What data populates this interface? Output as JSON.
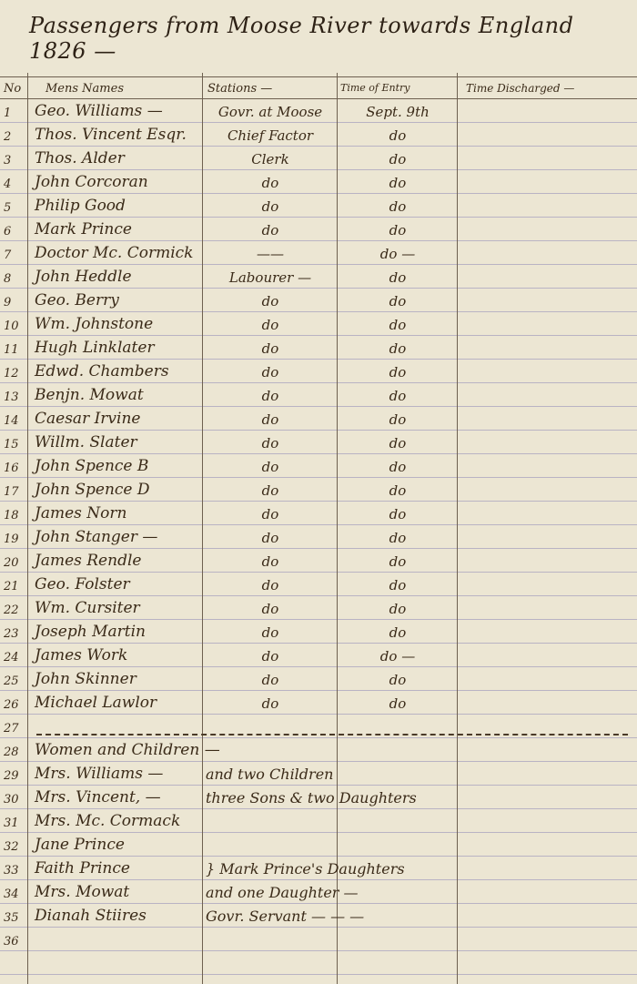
{
  "title": "Passengers from Moose River towards England 1826 —",
  "headers": {
    "no": "No",
    "names": "Mens Names",
    "stations": "Stations —",
    "time_entry": "Time of Entry",
    "time_discharged": "Time Discharged —"
  },
  "rows": [
    {
      "no": "1",
      "name": "Geo. Williams —",
      "station": "Govr. at Moose",
      "time": "Sept. 9th"
    },
    {
      "no": "2",
      "name": "Thos. Vincent Esqr.",
      "station": "Chief Factor",
      "time": "do"
    },
    {
      "no": "3",
      "name": "Thos. Alder",
      "station": "Clerk",
      "time": "do"
    },
    {
      "no": "4",
      "name": "John Corcoran",
      "station": "do",
      "time": "do"
    },
    {
      "no": "5",
      "name": "Philip Good",
      "station": "do",
      "time": "do"
    },
    {
      "no": "6",
      "name": "Mark Prince",
      "station": "do",
      "time": "do"
    },
    {
      "no": "7",
      "name": "Doctor Mc. Cormick",
      "station": "——",
      "time": "do —"
    },
    {
      "no": "8",
      "name": "John Heddle",
      "station": "Labourer —",
      "time": "do"
    },
    {
      "no": "9",
      "name": "Geo. Berry",
      "station": "do",
      "time": "do"
    },
    {
      "no": "10",
      "name": "Wm. Johnstone",
      "station": "do",
      "time": "do"
    },
    {
      "no": "11",
      "name": "Hugh Linklater",
      "station": "do",
      "time": "do"
    },
    {
      "no": "12",
      "name": "Edwd. Chambers",
      "station": "do",
      "time": "do"
    },
    {
      "no": "13",
      "name": "Benjn. Mowat",
      "station": "do",
      "time": "do"
    },
    {
      "no": "14",
      "name": "Caesar Irvine",
      "station": "do",
      "time": "do"
    },
    {
      "no": "15",
      "name": "Willm. Slater",
      "station": "do",
      "time": "do"
    },
    {
      "no": "16",
      "name": "John Spence B",
      "station": "do",
      "time": "do"
    },
    {
      "no": "17",
      "name": "John Spence D",
      "station": "do",
      "time": "do"
    },
    {
      "no": "18",
      "name": "James Norn",
      "station": "do",
      "time": "do"
    },
    {
      "no": "19",
      "name": "John Stanger —",
      "station": "do",
      "time": "do"
    },
    {
      "no": "20",
      "name": "James Rendle",
      "station": "do",
      "time": "do"
    },
    {
      "no": "21",
      "name": "Geo. Folster",
      "station": "do",
      "time": "do"
    },
    {
      "no": "22",
      "name": "Wm. Cursiter",
      "station": "do",
      "time": "do"
    },
    {
      "no": "23",
      "name": "Joseph Martin",
      "station": "do",
      "time": "do"
    },
    {
      "no": "24",
      "name": "James Work",
      "station": "do",
      "time": "do —"
    },
    {
      "no": "25",
      "name": "John Skinner",
      "station": "do",
      "time": "do"
    },
    {
      "no": "26",
      "name": "Michael Lawlor",
      "station": "do",
      "time": "do"
    }
  ],
  "extra_rows": [
    {
      "no": "27",
      "name": "",
      "note": ""
    },
    {
      "no": "28",
      "name": "Women and Children —",
      "note": ""
    },
    {
      "no": "29",
      "name": "Mrs. Williams —",
      "note": "and two Children"
    },
    {
      "no": "30",
      "name": "Mrs. Vincent, —",
      "note": "three Sons & two Daughters"
    },
    {
      "no": "31",
      "name": "Mrs. Mc. Cormack",
      "note": ""
    },
    {
      "no": "32",
      "name": "Jane Prince",
      "note": ""
    },
    {
      "no": "33",
      "name": "Faith Prince",
      "note": "} Mark Prince's Daughters"
    },
    {
      "no": "34",
      "name": "Mrs. Mowat",
      "note": "and one Daughter —"
    },
    {
      "no": "35",
      "name": "Dianah Stiires",
      "note": "Govr. Servant  — — —"
    },
    {
      "no": "36",
      "name": "",
      "note": ""
    }
  ]
}
